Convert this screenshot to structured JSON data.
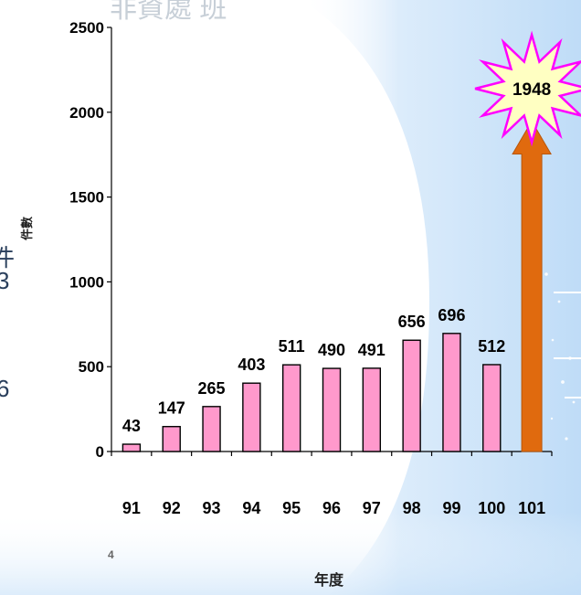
{
  "slide": {
    "page_number": "4",
    "cut_text": {
      "top": "非資處 班",
      "left_1": "件",
      "left_2": "3",
      "left_3": "6"
    }
  },
  "chart_data": {
    "type": "bar",
    "title": "",
    "xlabel": "年度",
    "ylabel": "件數",
    "ylim": [
      0,
      2500
    ],
    "yticks": [
      0,
      500,
      1000,
      1500,
      2000,
      2500
    ],
    "categories": [
      "91",
      "92",
      "93",
      "94",
      "95",
      "96",
      "97",
      "98",
      "99",
      "100",
      "101"
    ],
    "values": [
      43,
      147,
      265,
      403,
      511,
      490,
      491,
      656,
      696,
      512,
      1948
    ],
    "data_labels": [
      "43",
      "147",
      "265",
      "403",
      "511",
      "490",
      "491",
      "656",
      "696",
      "512",
      ""
    ],
    "highlight": {
      "category": "101",
      "value": 1948,
      "label": "1948",
      "style": "arrow-with-burst"
    },
    "grid": false,
    "legend": "none",
    "colors": {
      "bar_fill": "#ff99cc",
      "bar_stroke": "#000000",
      "arrow_fill": "#e06a0e",
      "burst_stroke": "#ff00ff",
      "burst_fill": "#ffffc2"
    }
  }
}
